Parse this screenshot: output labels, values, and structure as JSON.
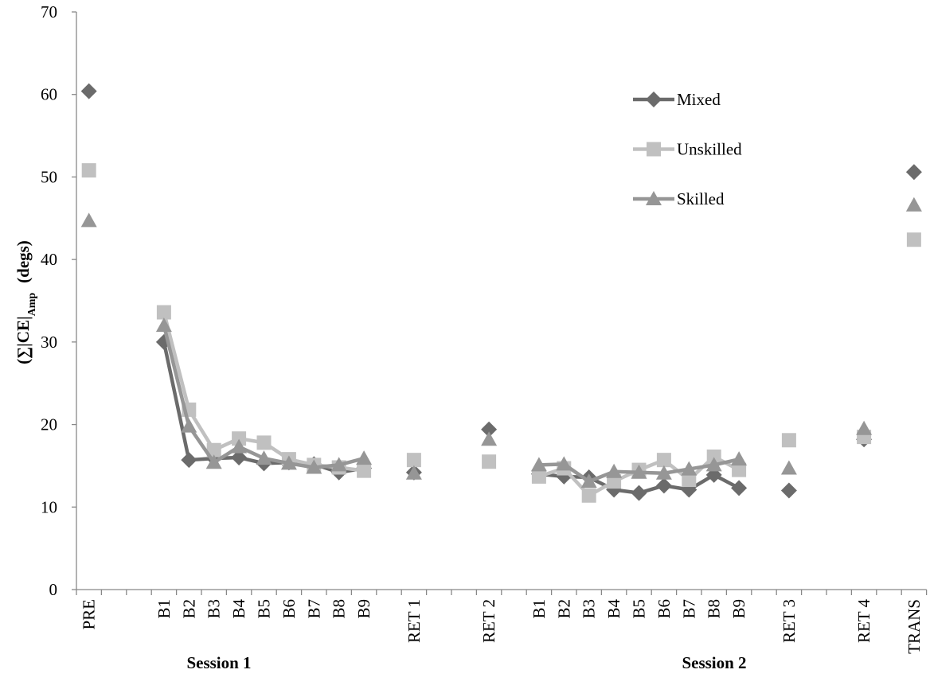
{
  "chart_data": {
    "type": "line",
    "y_label": "(∑|CE|",
    "y_label_sub": "Amp",
    "y_label_unit": "(degs)",
    "categories": [
      "PRE",
      null,
      null,
      "B1",
      "B2",
      "B3",
      "B4",
      "B5",
      "B6",
      "B7",
      "B8",
      "B9",
      null,
      "RET 1",
      null,
      null,
      "RET 2",
      null,
      "B1",
      "B2",
      "B3",
      "B4",
      "B5",
      "B6",
      "B7",
      "B8",
      "B9",
      null,
      "RET 3",
      null,
      null,
      "RET 4",
      null,
      "TRANS"
    ],
    "groups": [
      "Session 1",
      "Session 2"
    ],
    "series": [
      {
        "name": "Mixed",
        "color": "#6b6b6b",
        "marker": "diamond",
        "values": [
          60.4,
          null,
          null,
          30.0,
          15.7,
          15.9,
          16.0,
          15.3,
          15.4,
          15.2,
          14.2,
          14.7,
          null,
          14.2,
          null,
          null,
          19.4,
          null,
          14.0,
          13.7,
          13.6,
          12.1,
          11.7,
          12.6,
          12.1,
          13.9,
          12.3,
          null,
          12.0,
          null,
          null,
          18.2,
          null,
          50.6
        ]
      },
      {
        "name": "Unskilled",
        "color": "#c0c0c0",
        "marker": "square",
        "values": [
          50.8,
          null,
          null,
          33.6,
          21.8,
          16.9,
          18.3,
          17.8,
          15.8,
          15.1,
          14.8,
          14.4,
          null,
          15.7,
          null,
          null,
          15.5,
          null,
          13.7,
          14.7,
          11.4,
          13.1,
          14.5,
          15.7,
          13.3,
          16.1,
          14.5,
          null,
          18.1,
          null,
          null,
          18.5,
          null,
          42.4
        ]
      },
      {
        "name": "Skilled",
        "color": "#969696",
        "marker": "triangle",
        "values": [
          44.7,
          null,
          null,
          32.0,
          19.8,
          15.4,
          17.3,
          15.9,
          15.3,
          14.8,
          15.1,
          15.9,
          null,
          14.1,
          null,
          null,
          18.2,
          null,
          15.1,
          15.2,
          13.1,
          14.3,
          14.2,
          14.1,
          14.6,
          15.1,
          15.8,
          null,
          14.7,
          null,
          null,
          19.5,
          null,
          46.6
        ]
      }
    ],
    "ylim": [
      0,
      70
    ],
    "yticks": [
      0,
      10,
      20,
      30,
      40,
      50,
      60,
      70
    ],
    "grid": false
  }
}
